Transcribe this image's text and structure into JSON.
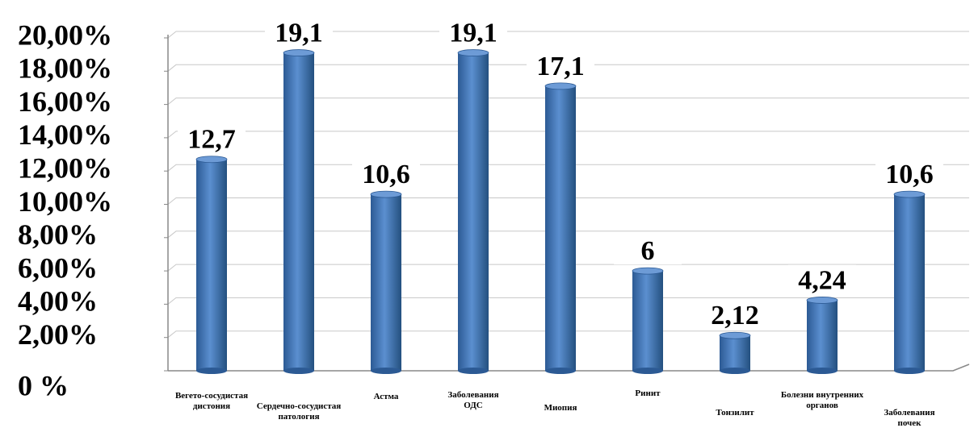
{
  "chart_data": {
    "type": "bar",
    "categories": [
      "Вегето-сосудистая\nдистония",
      "Сердечно-сосудистая\nпатология",
      "Астма",
      "Заболевания\nОДС",
      "Миопия",
      "Ринит",
      "Тонзилит",
      "Болезни внутренних\nорганов",
      "Заболевания\nпочек"
    ],
    "values": [
      12.7,
      19.1,
      10.6,
      19.1,
      17.1,
      6,
      2.12,
      4.24,
      10.6
    ],
    "value_labels": [
      "12,7",
      "19,1",
      "10,6",
      "19,1",
      "17,1",
      "6",
      "2,12",
      "4,24",
      "10,6"
    ],
    "color": "#4f81bd",
    "ylim": [
      0,
      20
    ],
    "yticks": [
      {
        "value": 0,
        "label": "0 %"
      },
      {
        "value": 2,
        "label": "2,00%"
      },
      {
        "value": 4,
        "label": "4,00%"
      },
      {
        "value": 6,
        "label": "6,00%"
      },
      {
        "value": 8,
        "label": "8,00%"
      },
      {
        "value": 10,
        "label": "10,00%"
      },
      {
        "value": 12,
        "label": "12,00%"
      },
      {
        "value": 14,
        "label": "14,00%"
      },
      {
        "value": 16,
        "label": "16,00%"
      },
      {
        "value": 18,
        "label": "18,00%"
      },
      {
        "value": 20,
        "label": "20,00%"
      }
    ],
    "grid": true
  }
}
